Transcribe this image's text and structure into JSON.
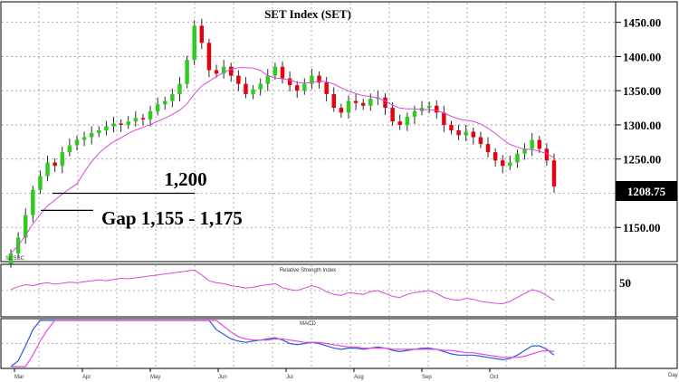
{
  "chart_data": {
    "type": "candlestick",
    "title": "SET  Index  (SET)",
    "ylim": [
      1100,
      1480
    ],
    "yticks": [
      1150,
      1200,
      1250,
      1300,
      1350,
      1400,
      1450
    ],
    "ytick_labels": [
      "1150.00",
      "1200.00",
      "1250.00",
      "1300.00",
      "1350.00",
      "1400.00",
      "1450.00"
    ],
    "last_price": "1208.75",
    "colors": {
      "up": "#2ecc1e",
      "down": "#e8000e",
      "ma": "#d64ad6",
      "macd_line": "#2a5bd8",
      "signal_line": "#e84ae0"
    },
    "annotations": {
      "resistance_label": "1,200",
      "resistance_level": 1200,
      "gap_label": "Gap 1,155 - 1,175",
      "gap_level": 1175
    },
    "closes": [
      1112,
      1135,
      1168,
      1205,
      1225,
      1245,
      1240,
      1260,
      1270,
      1278,
      1282,
      1288,
      1292,
      1298,
      1302,
      1300,
      1305,
      1310,
      1308,
      1320,
      1330,
      1335,
      1345,
      1360,
      1395,
      1445,
      1420,
      1380,
      1375,
      1385,
      1372,
      1360,
      1345,
      1352,
      1360,
      1372,
      1385,
      1368,
      1358,
      1350,
      1360,
      1372,
      1362,
      1345,
      1325,
      1318,
      1335,
      1332,
      1328,
      1338,
      1340,
      1325,
      1305,
      1300,
      1312,
      1320,
      1325,
      1328,
      1318,
      1300,
      1292,
      1285,
      1290,
      1282,
      1272,
      1260,
      1248,
      1240,
      1245,
      1258,
      1265,
      1278,
      1265,
      1248,
      1210
    ],
    "rsi": {
      "title": "Relative Strength Index",
      "tick_label": "50",
      "values": [
        52,
        58,
        62,
        60,
        64,
        66,
        63,
        65,
        67,
        66,
        68,
        70,
        72,
        70,
        73,
        75,
        74,
        76,
        78,
        80,
        82,
        84,
        86,
        88,
        90,
        92,
        82,
        70,
        66,
        64,
        60,
        58,
        55,
        57,
        60,
        62,
        64,
        56,
        52,
        50,
        55,
        60,
        56,
        48,
        42,
        40,
        46,
        44,
        42,
        48,
        50,
        44,
        38,
        36,
        42,
        46,
        48,
        50,
        44,
        36,
        32,
        30,
        34,
        32,
        28,
        26,
        24,
        23,
        28,
        36,
        44,
        52,
        48,
        40,
        30
      ]
    },
    "macd": {
      "title": "MACD",
      "macd_line": [
        -25,
        -15,
        -2,
        12,
        22,
        30,
        33,
        35,
        36,
        37,
        38,
        39,
        40,
        40,
        40,
        40,
        40,
        40,
        40,
        40,
        40,
        40,
        40,
        40,
        40,
        40,
        32,
        20,
        12,
        8,
        4,
        2,
        1,
        2,
        3,
        4,
        5,
        3,
        0,
        -1,
        0,
        1,
        0,
        -2,
        -4,
        -5,
        -4,
        -4,
        -5,
        -4,
        -3,
        -4,
        -6,
        -7,
        -6,
        -5,
        -4,
        -4,
        -5,
        -7,
        -9,
        -10,
        -10,
        -10,
        -11,
        -12,
        -13,
        -14,
        -13,
        -10,
        -6,
        -2,
        -2,
        -5,
        -10
      ],
      "signal_line": [
        -40,
        -32,
        -22,
        -10,
        2,
        12,
        20,
        26,
        30,
        33,
        35,
        37,
        38,
        39,
        40,
        40,
        40,
        40,
        40,
        40,
        40,
        40,
        40,
        40,
        40,
        40,
        38,
        30,
        22,
        15,
        10,
        6,
        4,
        3,
        3,
        3,
        4,
        4,
        3,
        2,
        1,
        1,
        1,
        0,
        -1,
        -2,
        -3,
        -3,
        -4,
        -4,
        -4,
        -4,
        -5,
        -5,
        -5,
        -5,
        -5,
        -5,
        -5,
        -6,
        -6,
        -7,
        -8,
        -8,
        -9,
        -10,
        -11,
        -12,
        -12,
        -12,
        -11,
        -9,
        -7,
        -6,
        -7
      ]
    },
    "x_tick_labels": [
      "Mar",
      "Apr",
      "May",
      "Jun",
      "Jul",
      "Aug",
      "Sep",
      "Oct"
    ],
    "x_axis_end_label": "Day",
    "corner_label": "Sc SSC"
  }
}
